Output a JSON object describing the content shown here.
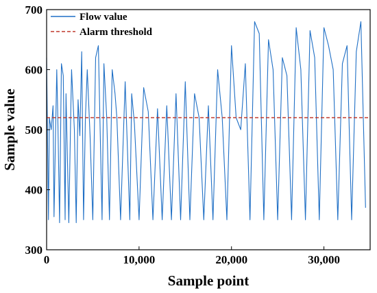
{
  "chart_data": {
    "type": "line",
    "title": "",
    "xlabel": "Sample point",
    "ylabel": "Sample value",
    "xlim": [
      0,
      35000
    ],
    "ylim": [
      300,
      700
    ],
    "x_ticks": [
      0,
      10000,
      20000,
      30000
    ],
    "x_tick_labels": [
      "0",
      "10,000",
      "20,000",
      "30,000"
    ],
    "y_ticks": [
      300,
      400,
      500,
      600,
      700
    ],
    "y_tick_labels": [
      "300",
      "400",
      "500",
      "600",
      "700"
    ],
    "grid": false,
    "legend": {
      "position": "top-left",
      "entries": [
        "Flow value",
        "Alarm threshold"
      ]
    },
    "series": [
      {
        "name": "Flow value",
        "style": "solid",
        "color": "#1f6fc5",
        "x": [
          0,
          200,
          300,
          500,
          700,
          800,
          1100,
          1200,
          1400,
          1600,
          1800,
          2000,
          2100,
          2400,
          2600,
          2700,
          3000,
          3200,
          3400,
          3600,
          3800,
          4000,
          4200,
          4400,
          4700,
          5000,
          5300,
          5600,
          6000,
          6200,
          6500,
          6800,
          7100,
          7400,
          7600,
          8000,
          8500,
          9000,
          9200,
          9500,
          10000,
          10500,
          11000,
          11500,
          12000,
          12500,
          13000,
          13500,
          14000,
          14500,
          15000,
          15500,
          16000,
          16500,
          17000,
          17500,
          18000,
          18500,
          19000,
          19500,
          20000,
          20500,
          21000,
          21500,
          22000,
          22500,
          23000,
          23500,
          24000,
          24500,
          25000,
          25500,
          26000,
          26500,
          27000,
          27500,
          28000,
          28500,
          29000,
          29500,
          30000,
          30500,
          31000,
          31500,
          32000,
          32500,
          33000,
          33500,
          34000,
          34500
        ],
        "y": [
          620,
          350,
          520,
          500,
          540,
          355,
          600,
          530,
          345,
          610,
          590,
          350,
          560,
          345,
          520,
          600,
          500,
          345,
          550,
          490,
          630,
          350,
          520,
          600,
          490,
          350,
          620,
          640,
          350,
          610,
          520,
          350,
          600,
          560,
          520,
          350,
          580,
          350,
          560,
          510,
          350,
          570,
          530,
          350,
          535,
          350,
          540,
          350,
          560,
          350,
          580,
          350,
          560,
          520,
          350,
          540,
          350,
          600,
          520,
          350,
          640,
          520,
          500,
          610,
          350,
          680,
          660,
          350,
          650,
          600,
          350,
          620,
          590,
          350,
          670,
          600,
          350,
          665,
          620,
          350,
          670,
          640,
          600,
          350,
          610,
          640,
          350,
          630,
          680,
          370
        ]
      },
      {
        "name": "Alarm threshold",
        "style": "dashed",
        "color": "#c0392b",
        "x": [
          0,
          35000
        ],
        "y": [
          520,
          520
        ]
      }
    ]
  }
}
